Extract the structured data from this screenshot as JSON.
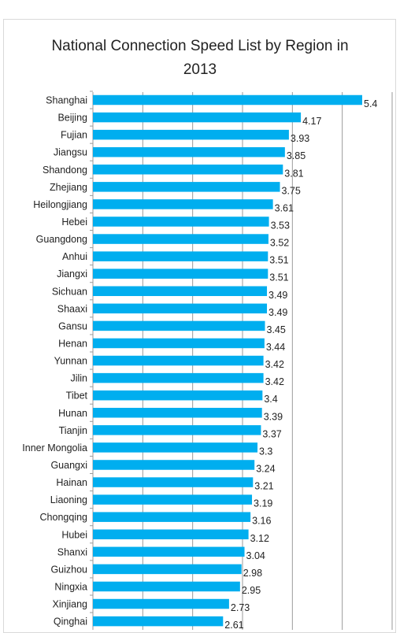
{
  "chart_data": {
    "type": "bar",
    "orientation": "horizontal",
    "title_lines": [
      "National Connection Speed List by Region in",
      "2013"
    ],
    "title": "National Connection Speed List by Region in 2013",
    "xlabel": "",
    "ylabel": "",
    "xlim": [
      0,
      6
    ],
    "grid": true,
    "bar_color": "#00aeef",
    "categories": [
      "Shanghai",
      "Beijing",
      "Fujian",
      "Jiangsu",
      "Shandong",
      "Zhejiang",
      "Heilongjiang",
      "Hebei",
      "Guangdong",
      "Anhui",
      "Jiangxi",
      "Sichuan",
      "Shaaxi",
      "Gansu",
      "Henan",
      "Yunnan",
      "Jilin",
      "Tibet",
      "Hunan",
      "Tianjin",
      "Inner Mongolia",
      "Guangxi",
      "Hainan",
      "Liaoning",
      "Chongqing",
      "Hubei",
      "Shanxi",
      "Guizhou",
      "Ningxia",
      "Xinjiang",
      "Qinghai"
    ],
    "values": [
      5.4,
      4.17,
      3.93,
      3.85,
      3.81,
      3.75,
      3.61,
      3.53,
      3.52,
      3.51,
      3.51,
      3.49,
      3.49,
      3.45,
      3.44,
      3.42,
      3.42,
      3.4,
      3.39,
      3.37,
      3.3,
      3.24,
      3.21,
      3.19,
      3.16,
      3.12,
      3.04,
      2.98,
      2.95,
      2.73,
      2.61
    ]
  }
}
